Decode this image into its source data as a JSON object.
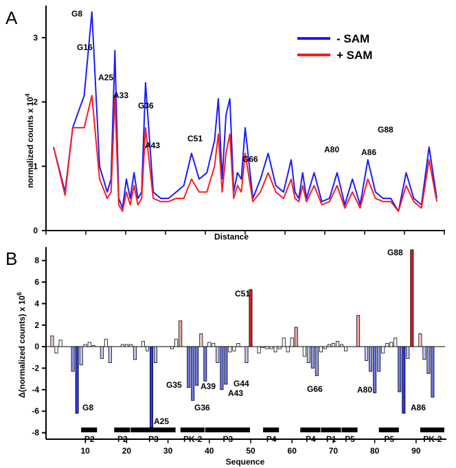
{
  "chart_data": [
    {
      "panel_label": "A",
      "type": "line",
      "xlabel": "Distance",
      "ylabel": "normalized counts x 10",
      "ylabel_exponent": "4",
      "ylim": [
        0,
        3.5
      ],
      "yticks": [
        "0",
        "1",
        "2",
        "3"
      ],
      "legend": {
        "position": "top-right"
      },
      "series": [
        {
          "name": "- SAM",
          "color": "#1a1aff",
          "x": [
            0,
            3,
            5,
            8,
            10,
            12,
            14,
            15,
            16,
            17,
            18,
            19,
            20,
            21,
            22,
            23,
            24,
            26,
            28,
            30,
            32,
            34,
            36,
            38,
            40,
            42,
            43,
            44,
            45,
            46,
            47,
            48,
            49,
            50,
            52,
            54,
            56,
            58,
            60,
            62,
            63,
            64,
            65,
            66,
            68,
            70,
            72,
            74,
            76,
            78,
            80,
            82,
            84,
            86,
            88,
            90,
            92,
            94,
            96,
            98,
            100
          ],
          "y": [
            1.3,
            0.6,
            1.6,
            2.1,
            3.4,
            1.0,
            0.6,
            0.8,
            2.8,
            0.5,
            0.35,
            0.8,
            0.5,
            0.9,
            0.5,
            0.6,
            2.3,
            0.6,
            0.5,
            0.5,
            0.6,
            0.7,
            1.2,
            0.8,
            0.9,
            1.4,
            2.05,
            0.8,
            1.8,
            2.05,
            0.6,
            0.9,
            0.8,
            1.6,
            0.5,
            0.8,
            1.2,
            0.7,
            0.6,
            1.1,
            0.6,
            0.5,
            0.9,
            0.5,
            0.9,
            0.45,
            0.5,
            0.9,
            0.4,
            0.8,
            0.4,
            1.1,
            0.6,
            0.5,
            0.5,
            0.3,
            0.9,
            0.5,
            0.4,
            1.3,
            0.5
          ]
        },
        {
          "name": "+ SAM",
          "color": "#ff1a1a",
          "x": [
            0,
            3,
            5,
            8,
            10,
            12,
            14,
            15,
            16,
            17,
            18,
            19,
            20,
            21,
            22,
            23,
            24,
            26,
            28,
            30,
            32,
            34,
            36,
            38,
            40,
            42,
            43,
            44,
            45,
            46,
            47,
            48,
            49,
            50,
            52,
            54,
            56,
            58,
            60,
            62,
            63,
            64,
            65,
            66,
            68,
            70,
            72,
            74,
            76,
            78,
            80,
            82,
            84,
            86,
            88,
            90,
            92,
            94,
            96,
            98,
            100
          ],
          "y": [
            1.3,
            0.55,
            1.6,
            1.6,
            2.1,
            0.8,
            0.5,
            0.6,
            2.1,
            0.4,
            0.3,
            0.6,
            0.4,
            0.7,
            0.4,
            0.5,
            1.6,
            0.5,
            0.45,
            0.45,
            0.5,
            0.5,
            0.8,
            0.6,
            0.6,
            1.0,
            1.5,
            0.6,
            1.2,
            1.5,
            0.5,
            0.7,
            0.6,
            1.2,
            0.45,
            0.6,
            0.9,
            0.6,
            0.5,
            0.8,
            0.5,
            0.45,
            0.7,
            0.45,
            0.7,
            0.4,
            0.45,
            0.7,
            0.35,
            0.6,
            0.35,
            0.8,
            0.5,
            0.45,
            0.45,
            0.3,
            0.7,
            0.45,
            0.35,
            1.1,
            0.45
          ]
        }
      ],
      "annotations": [
        "G8",
        "G16",
        "A25",
        "A33",
        "G36",
        "A43",
        "C51",
        "G66",
        "A80",
        "A86",
        "G88"
      ]
    },
    {
      "panel_label": "B",
      "type": "bar",
      "xlabel": "Sequence",
      "ylabel": "Δ(normalized counts) x 10",
      "ylabel_exponent": "6",
      "xlim": [
        1,
        97
      ],
      "ylim": [
        -8.6,
        9
      ],
      "xticks": [
        "10",
        "20",
        "30",
        "40",
        "50",
        "60",
        "70",
        "80",
        "90"
      ],
      "yticks": [
        "-8",
        "-6",
        "-4",
        "-2",
        "0",
        "2",
        "4",
        "6",
        "8"
      ],
      "x": [
        2,
        3,
        4,
        5,
        6,
        7,
        8,
        9,
        10,
        11,
        12,
        13,
        14,
        15,
        16,
        17,
        18,
        19,
        20,
        21,
        22,
        23,
        24,
        25,
        26,
        27,
        28,
        29,
        30,
        31,
        32,
        33,
        34,
        35,
        36,
        37,
        38,
        39,
        40,
        41,
        42,
        43,
        44,
        45,
        46,
        47,
        48,
        49,
        50,
        51,
        52,
        53,
        54,
        55,
        56,
        57,
        58,
        59,
        60,
        61,
        62,
        63,
        64,
        65,
        66,
        67,
        68,
        69,
        70,
        71,
        72,
        73,
        74,
        75,
        76,
        77,
        78,
        79,
        80,
        81,
        82,
        83,
        84,
        85,
        86,
        87,
        88,
        89,
        90,
        91,
        92,
        93,
        94,
        95,
        96
      ],
      "values": [
        1.0,
        -0.6,
        0.6,
        0,
        0,
        -2.3,
        -6.2,
        -1.7,
        0.2,
        0.4,
        0.1,
        0,
        -1.1,
        0.7,
        -1.5,
        0,
        0,
        0.2,
        0.2,
        0.2,
        -1.2,
        0,
        0.5,
        -0.4,
        -7.5,
        -1.5,
        0,
        0,
        0,
        -0.2,
        0.7,
        2.4,
        0,
        -3.8,
        -5.0,
        -3.6,
        1.2,
        -3.2,
        0.4,
        0.3,
        -1.5,
        -4.0,
        -3.5,
        -0.5,
        -0.4,
        0.3,
        0,
        -1.5,
        5.3,
        0,
        -0.6,
        -0.1,
        -0.2,
        -0.2,
        -0.5,
        -0.2,
        0.8,
        -0.5,
        0.8,
        1.8,
        0,
        -0.9,
        -1.5,
        -2.0,
        -2.7,
        -0.5,
        -0.2,
        0.2,
        0.3,
        0.5,
        0.2,
        -0.4,
        0,
        0,
        2.9,
        0,
        -1.3,
        -2.3,
        -4.3,
        -2.3,
        -0.6,
        0.3,
        0.4,
        0.8,
        -4.2,
        -6.2,
        -1.1,
        9.0,
        0,
        1.2,
        -1.2,
        -2.5,
        -4.7,
        0,
        0
      ],
      "annotations": [
        "C51",
        "G88",
        "G8",
        "A25",
        "G35",
        "G36",
        "A39",
        "A43",
        "G44",
        "G66",
        "A80",
        "A86"
      ],
      "elements": [
        {
          "label": "P2",
          "x0": 9,
          "x1": 13
        },
        {
          "label": "P2",
          "x0": 17,
          "x1": 21
        },
        {
          "label": "P3",
          "x0": 21,
          "x1": 32
        },
        {
          "label": "PK-2",
          "x0": 33,
          "x1": 39
        },
        {
          "label": "P3",
          "x0": 39,
          "x1": 50
        },
        {
          "label": "P4",
          "x0": 53,
          "x1": 57
        },
        {
          "label": "P4",
          "x0": 62,
          "x1": 67
        },
        {
          "label": "P1",
          "x0": 67,
          "x1": 72
        },
        {
          "label": "P5",
          "x0": 72,
          "x1": 76
        },
        {
          "label": "P5",
          "x0": 81,
          "x1": 86
        },
        {
          "label": "PK-2",
          "x0": 91,
          "x1": 97
        }
      ]
    }
  ]
}
